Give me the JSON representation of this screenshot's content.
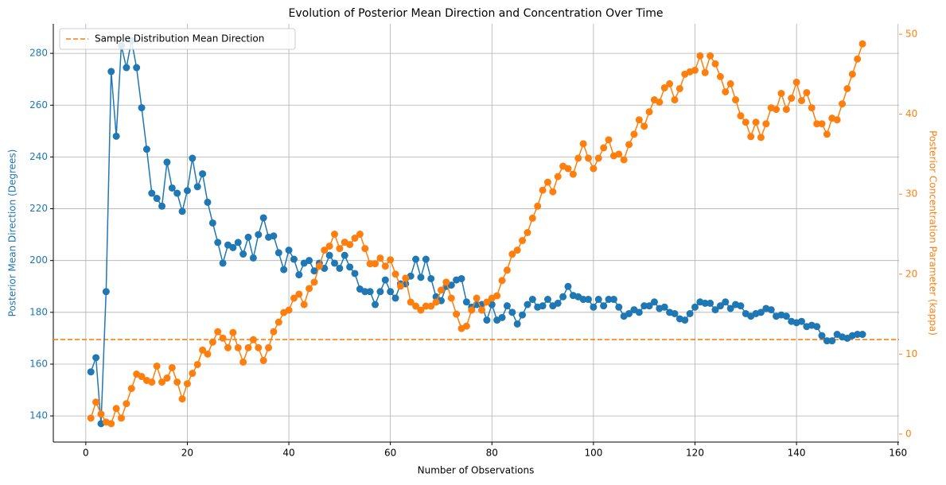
{
  "chart_data": {
    "type": "line",
    "title": "Evolution of Posterior Mean Direction and Concentration Over Time",
    "xlabel": "Number of Observations",
    "ylabel": "Posterior Mean Direction (Degrees)",
    "y2label": "Posterior Concentration Parameter (kappa)",
    "ylabel_color": "#1f77b4",
    "y2label_color": "#ff7f0e",
    "x": [
      1,
      2,
      3,
      4,
      5,
      6,
      7,
      8,
      9,
      10,
      11,
      12,
      13,
      14,
      15,
      16,
      17,
      18,
      19,
      20,
      21,
      22,
      23,
      24,
      25,
      26,
      27,
      28,
      29,
      30,
      31,
      32,
      33,
      34,
      35,
      36,
      37,
      38,
      39,
      40,
      41,
      42,
      43,
      44,
      45,
      46,
      47,
      48,
      49,
      50,
      51,
      52,
      53,
      54,
      55,
      56,
      57,
      58,
      59,
      60,
      61,
      62,
      63,
      64,
      65,
      66,
      67,
      68,
      69,
      70,
      71,
      72,
      73,
      74,
      75,
      76,
      77,
      78,
      79,
      80,
      81,
      82,
      83,
      84,
      85,
      86,
      87,
      88,
      89,
      90,
      91,
      92,
      93,
      94,
      95,
      96,
      97,
      98,
      99,
      100,
      101,
      102,
      103,
      104,
      105,
      106,
      107,
      108,
      109,
      110,
      111,
      112,
      113,
      114,
      115,
      116,
      117,
      118,
      119,
      120,
      121,
      122,
      123,
      124,
      125,
      126,
      127,
      128,
      129,
      130,
      131,
      132,
      133,
      134,
      135,
      136,
      137,
      138,
      139,
      140,
      141,
      142,
      143,
      144,
      145,
      146,
      147,
      148,
      149,
      150,
      151,
      152,
      153
    ],
    "series": [
      {
        "color": "#1f77b4",
        "axis": "y",
        "values": [
          157,
          162.5,
          137,
          188,
          273,
          248,
          283,
          274.5,
          285,
          274.5,
          259,
          243,
          226,
          224,
          221,
          238,
          228,
          226,
          219,
          227,
          239.5,
          228.5,
          233.5,
          222.5,
          214.5,
          207,
          199,
          206,
          205,
          207,
          202.5,
          209,
          201,
          210,
          216.5,
          209,
          209.5,
          203,
          196.5,
          204,
          200.5,
          194.5,
          199,
          200,
          196,
          199,
          197,
          202,
          199,
          197,
          202,
          197.5,
          195,
          189,
          188,
          188,
          183,
          188,
          192.5,
          188,
          185.5,
          191,
          191,
          194,
          200.5,
          193.5,
          200.5,
          193,
          186,
          184.5,
          190,
          190.5,
          192.5,
          193,
          184,
          182,
          183,
          183,
          177,
          183,
          177,
          178,
          182.5,
          180,
          175.5,
          179,
          183,
          185,
          182,
          182.5,
          185,
          182.5,
          183.5,
          186,
          190,
          186.5,
          186,
          185,
          185,
          182,
          185,
          182.5,
          185,
          185,
          182,
          178.5,
          179.5,
          181,
          180,
          182.5,
          182.5,
          184,
          181.5,
          182,
          180,
          179.5,
          177.5,
          177,
          179.5,
          182,
          184,
          183.5,
          183.5,
          181,
          182.5,
          184,
          181.5,
          183,
          182.5,
          179.5,
          178.5,
          179.5,
          180,
          181.5,
          181,
          178.5,
          179,
          178.5,
          176.5,
          176,
          176.5,
          174.5,
          175,
          174.5,
          171,
          169,
          169,
          171.5,
          170.5,
          170,
          171,
          171.5,
          171.5
        ]
      },
      {
        "color": "#ff7f0e",
        "axis": "y2",
        "values": [
          2,
          4,
          2.5,
          1.5,
          1.3,
          3.2,
          2,
          3.8,
          5.7,
          7.5,
          7.2,
          6.7,
          6.5,
          8.5,
          6.5,
          7,
          8.3,
          6.5,
          4.4,
          6.3,
          7.6,
          8.7,
          10.5,
          10,
          11.5,
          12.8,
          12,
          10.8,
          12.7,
          10.8,
          9,
          10.8,
          11.8,
          10.8,
          9.2,
          10.8,
          12.8,
          14,
          15.2,
          15.5,
          17,
          17.5,
          16.2,
          18.2,
          19,
          21,
          23,
          23.5,
          25,
          23.2,
          24,
          23.7,
          24.5,
          25,
          23.2,
          21.3,
          21.3,
          22,
          21,
          21.8,
          20,
          18.5,
          19.5,
          16.5,
          16,
          15.5,
          16,
          16,
          16.5,
          18,
          19,
          17,
          15,
          13.2,
          13.5,
          15.5,
          17,
          15.5,
          16.5,
          17,
          17.3,
          19.2,
          20.5,
          22.5,
          23,
          24.2,
          25.2,
          27,
          28.5,
          30.5,
          31.5,
          30.3,
          32.2,
          33.5,
          33.2,
          32.5,
          34.5,
          36.3,
          34.5,
          33.2,
          34.5,
          35.8,
          36.8,
          34.8,
          35,
          34.3,
          36.2,
          37.5,
          39.3,
          38.5,
          40.3,
          41.8,
          41.5,
          43.3,
          43.8,
          41.8,
          43.2,
          45,
          45.3,
          45.5,
          47.3,
          45.2,
          47.3,
          46.3,
          44.7,
          42.8,
          43.8,
          41.8,
          39.8,
          39,
          37.2,
          39,
          37.1,
          38.8,
          40.8,
          40.6,
          42.6,
          40.6,
          42,
          44,
          41.7,
          42.7,
          40.8,
          38.8,
          38.8,
          37.5,
          39.5,
          39.3,
          41.3,
          43.2,
          45,
          46.9,
          48.8
        ]
      }
    ],
    "hline": {
      "value": 169.5,
      "label": "Sample Distribution Mean Direction",
      "color": "#ff7f0e"
    },
    "legend": "upper left",
    "grid": true,
    "xlim": [
      -6.4,
      160.2
    ],
    "xticks": [
      0,
      20,
      40,
      60,
      80,
      100,
      120,
      140,
      160
    ],
    "ylim": [
      129.9,
      291.4
    ],
    "yticks": [
      140,
      160,
      180,
      200,
      220,
      240,
      260,
      280
    ],
    "y2lim": [
      -1,
      51.3
    ],
    "y2ticks": [
      0,
      10,
      20,
      30,
      40,
      50
    ]
  }
}
